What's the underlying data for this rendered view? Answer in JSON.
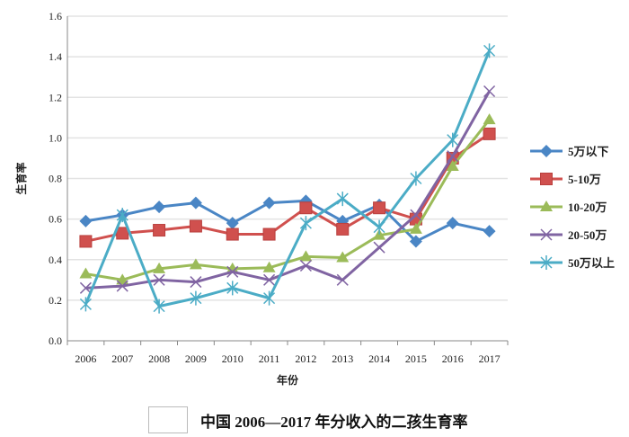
{
  "chart_data": {
    "type": "line",
    "title": "",
    "xlabel": "年份",
    "ylabel": "生育率",
    "ylim": [
      0,
      1.6
    ],
    "yticks": [
      "0.0",
      "0.2",
      "0.4",
      "0.6",
      "0.8",
      "1.0",
      "1.2",
      "1.4",
      "1.6"
    ],
    "grid": true,
    "legend_position": "right",
    "categories": [
      "2006",
      "2007",
      "2008",
      "2009",
      "2010",
      "2011",
      "2012",
      "2013",
      "2014",
      "2015",
      "2016",
      "2017"
    ],
    "series": [
      {
        "name": "5万以下",
        "color": "#4a86c5",
        "marker": "diamond",
        "values": [
          0.59,
          0.62,
          0.66,
          0.68,
          0.58,
          0.68,
          0.69,
          0.59,
          0.67,
          0.49,
          0.58,
          0.54
        ]
      },
      {
        "name": "5-10万",
        "color": "#d0504e",
        "marker": "square",
        "values": [
          0.49,
          0.53,
          0.545,
          0.565,
          0.525,
          0.525,
          0.655,
          0.55,
          0.655,
          0.6,
          0.9,
          1.02
        ]
      },
      {
        "name": "10-20万",
        "color": "#9bbb59",
        "marker": "triangle",
        "values": [
          0.33,
          0.3,
          0.355,
          0.375,
          0.355,
          0.36,
          0.415,
          0.41,
          0.52,
          0.55,
          0.86,
          1.09
        ]
      },
      {
        "name": "20-50万",
        "color": "#8064a2",
        "marker": "x",
        "values": [
          0.26,
          0.27,
          0.3,
          0.29,
          0.34,
          0.3,
          0.37,
          0.3,
          0.46,
          0.62,
          0.91,
          1.23
        ]
      },
      {
        "name": "50万以上",
        "color": "#4bacc6",
        "marker": "star",
        "values": [
          0.18,
          0.62,
          0.17,
          0.21,
          0.26,
          0.21,
          0.58,
          0.7,
          0.56,
          0.8,
          0.99,
          1.43
        ]
      }
    ]
  },
  "caption": "中国 2006—2017 年分收入的二孩生育率"
}
